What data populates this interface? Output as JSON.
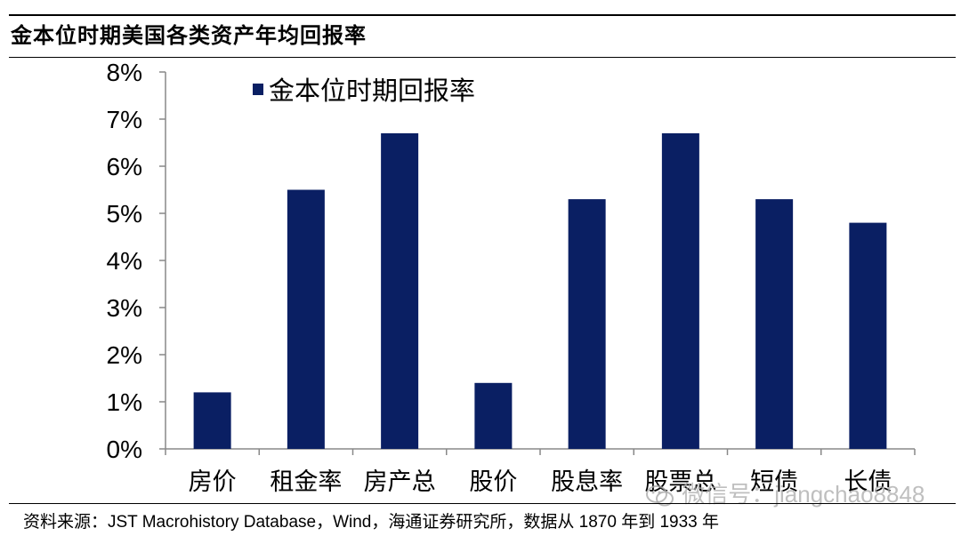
{
  "header": {
    "title": "金本位时期美国各类资产年均回报率"
  },
  "footer": {
    "source": "资料来源：JST Macrohistory Database，Wind，海通证券研究所，数据从 1870 年到 1933 年"
  },
  "watermark": {
    "text": "微信号：jiangchao8848",
    "icon": "wechat-icon"
  },
  "colors": {
    "bar": "#0a1f63",
    "axis": "#888888"
  },
  "chart_data": {
    "type": "bar",
    "categories": [
      "房价",
      "租金率",
      "房产总",
      "股价",
      "股息率",
      "股票总",
      "短债",
      "长债"
    ],
    "series": [
      {
        "name": "金本位时期回报率",
        "values": [
          1.2,
          5.5,
          6.7,
          1.4,
          5.3,
          6.7,
          5.3,
          4.8
        ]
      }
    ],
    "yticks": [
      "0%",
      "1%",
      "2%",
      "3%",
      "4%",
      "5%",
      "6%",
      "7%",
      "8%"
    ],
    "ylim": [
      0,
      8
    ],
    "unit": "%",
    "legend": "top-left",
    "grid": false
  }
}
